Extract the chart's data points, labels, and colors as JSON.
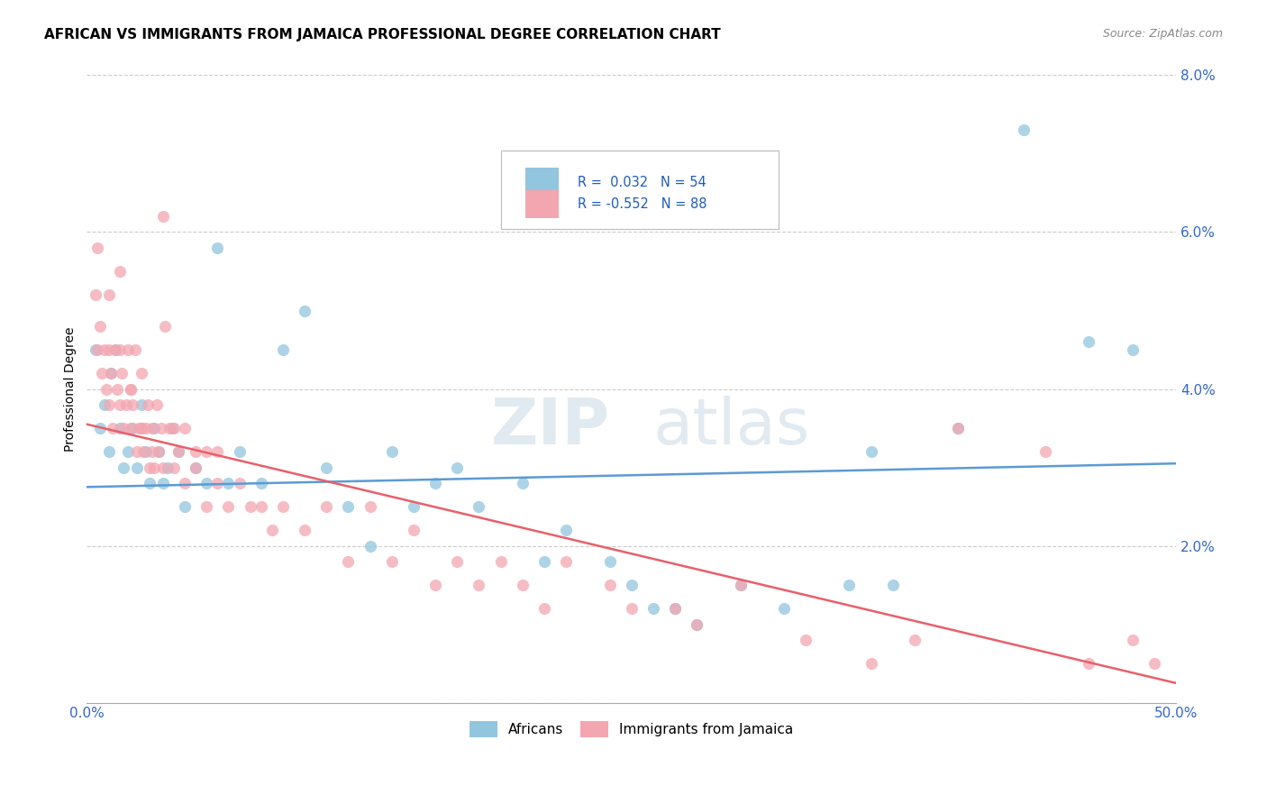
{
  "title": "AFRICAN VS IMMIGRANTS FROM JAMAICA PROFESSIONAL DEGREE CORRELATION CHART",
  "source": "Source: ZipAtlas.com",
  "ylabel": "Professional Degree",
  "xmin": 0.0,
  "xmax": 50.0,
  "ymin": 0.0,
  "ymax": 8.0,
  "blue_color": "#92c5de",
  "pink_color": "#f4a6b0",
  "blue_line_color": "#5b9bd5",
  "pink_line_color": "#e8606a",
  "blue_line_y0": 2.75,
  "blue_line_y1": 3.05,
  "pink_line_y0": 3.55,
  "pink_line_y1": 0.25,
  "watermark_zip": "ZIP",
  "watermark_atlas": "atlas",
  "legend_text_color": "#1f5bc4",
  "legend_n_color": "#1f5bc4",
  "africans_x": [
    0.4,
    0.6,
    0.8,
    1.0,
    1.1,
    1.3,
    1.5,
    1.7,
    1.9,
    2.1,
    2.3,
    2.5,
    2.7,
    2.9,
    3.1,
    3.3,
    3.5,
    3.7,
    3.9,
    4.2,
    4.5,
    5.0,
    5.5,
    6.0,
    6.5,
    7.0,
    8.0,
    9.0,
    10.0,
    11.0,
    12.0,
    13.0,
    14.0,
    15.0,
    16.0,
    17.0,
    18.0,
    20.0,
    21.0,
    22.0,
    24.0,
    25.0,
    27.0,
    30.0,
    32.0,
    35.0,
    36.0,
    40.0,
    43.0,
    46.0,
    48.0,
    37.0,
    26.0,
    28.0
  ],
  "africans_y": [
    4.5,
    3.5,
    3.8,
    3.2,
    4.2,
    4.5,
    3.5,
    3.0,
    3.2,
    3.5,
    3.0,
    3.8,
    3.2,
    2.8,
    3.5,
    3.2,
    2.8,
    3.0,
    3.5,
    3.2,
    2.5,
    3.0,
    2.8,
    5.8,
    2.8,
    3.2,
    2.8,
    4.5,
    5.0,
    3.0,
    2.5,
    2.0,
    3.2,
    2.5,
    2.8,
    3.0,
    2.5,
    2.8,
    1.8,
    2.2,
    1.8,
    1.5,
    1.2,
    1.5,
    1.2,
    1.5,
    3.2,
    3.5,
    7.3,
    4.6,
    4.5,
    1.5,
    1.2,
    1.0
  ],
  "jamaica_x": [
    0.4,
    0.5,
    0.6,
    0.7,
    0.8,
    0.9,
    1.0,
    1.0,
    1.1,
    1.2,
    1.3,
    1.4,
    1.5,
    1.5,
    1.6,
    1.7,
    1.8,
    1.9,
    2.0,
    2.0,
    2.1,
    2.2,
    2.3,
    2.4,
    2.5,
    2.5,
    2.6,
    2.7,
    2.8,
    2.9,
    3.0,
    3.1,
    3.2,
    3.3,
    3.4,
    3.5,
    3.6,
    3.8,
    4.0,
    4.2,
    4.5,
    5.0,
    5.5,
    6.0,
    6.5,
    7.0,
    7.5,
    8.0,
    8.5,
    9.0,
    10.0,
    11.0,
    12.0,
    13.0,
    14.0,
    15.0,
    16.0,
    17.0,
    18.0,
    19.0,
    20.0,
    21.0,
    22.0,
    24.0,
    25.0,
    27.0,
    28.0,
    30.0,
    33.0,
    36.0,
    38.0,
    40.0,
    44.0,
    46.0,
    48.0,
    49.0,
    0.5,
    1.0,
    1.5,
    2.0,
    2.5,
    3.0,
    3.5,
    4.0,
    4.5,
    5.0,
    5.5,
    6.0
  ],
  "jamaica_y": [
    5.2,
    4.5,
    4.8,
    4.2,
    4.5,
    4.0,
    3.8,
    4.5,
    4.2,
    3.5,
    4.5,
    4.0,
    3.8,
    5.5,
    4.2,
    3.5,
    3.8,
    4.5,
    3.5,
    4.0,
    3.8,
    4.5,
    3.2,
    3.5,
    3.5,
    4.2,
    3.2,
    3.5,
    3.8,
    3.0,
    3.5,
    3.0,
    3.8,
    3.2,
    3.5,
    6.2,
    4.8,
    3.5,
    3.0,
    3.2,
    3.5,
    3.0,
    3.2,
    2.8,
    2.5,
    2.8,
    2.5,
    2.5,
    2.2,
    2.5,
    2.2,
    2.5,
    1.8,
    2.5,
    1.8,
    2.2,
    1.5,
    1.8,
    1.5,
    1.8,
    1.5,
    1.2,
    1.8,
    1.5,
    1.2,
    1.2,
    1.0,
    1.5,
    0.8,
    0.5,
    0.8,
    3.5,
    3.2,
    0.5,
    0.8,
    0.5,
    5.8,
    5.2,
    4.5,
    4.0,
    3.5,
    3.2,
    3.0,
    3.5,
    2.8,
    3.2,
    2.5,
    3.2
  ]
}
